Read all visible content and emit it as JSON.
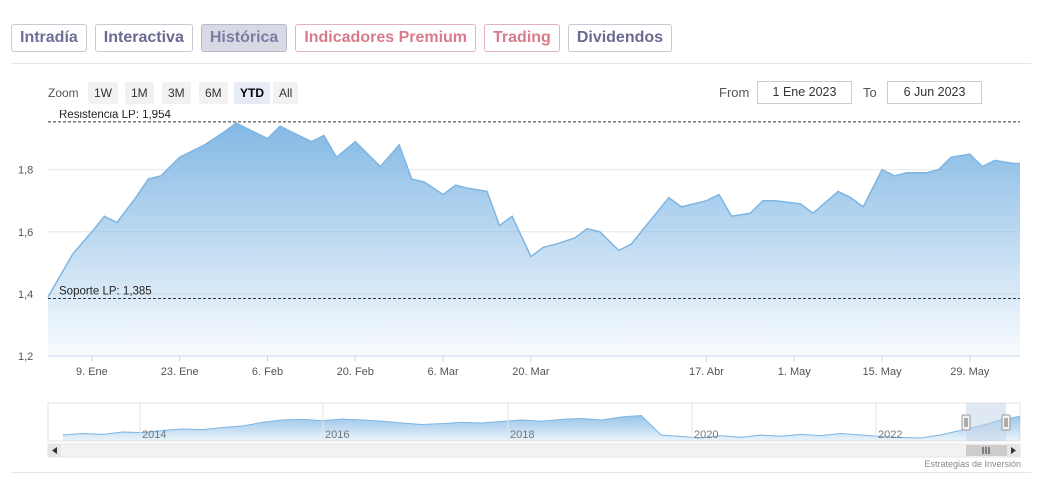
{
  "tabs": [
    {
      "label": "Intradía",
      "style": "normal"
    },
    {
      "label": "Interactiva",
      "style": "dark"
    },
    {
      "label": "Histórica",
      "style": "active"
    },
    {
      "label": "Indicadores Premium",
      "style": "red"
    },
    {
      "label": "Trading",
      "style": "red"
    },
    {
      "label": "Dividendos",
      "style": "dark"
    }
  ],
  "range_selector": {
    "zoom_label": "Zoom",
    "buttons": [
      "1W",
      "1M",
      "3M",
      "6M",
      "YTD",
      "All"
    ],
    "selected": "YTD",
    "from_label": "From",
    "from_value": "1 Ene 2023",
    "to_label": "To",
    "to_value": "6 Jun 2023"
  },
  "credit": "Estrategias de Inversión",
  "colors": {
    "line": "#7db5e3",
    "fill_top": "#7db5e3",
    "fill_bottom": "#ffffff",
    "reference_line": "#333333",
    "navigator_mask": "#c5d6ea"
  },
  "chart_data": {
    "type": "area",
    "x": [
      "2023-01-02",
      "2023-01-04",
      "2023-01-06",
      "2023-01-09",
      "2023-01-11",
      "2023-01-13",
      "2023-01-16",
      "2023-01-18",
      "2023-01-20",
      "2023-01-23",
      "2023-01-25",
      "2023-01-27",
      "2023-01-30",
      "2023-02-01",
      "2023-02-03",
      "2023-02-06",
      "2023-02-08",
      "2023-02-10",
      "2023-02-13",
      "2023-02-15",
      "2023-02-17",
      "2023-02-20",
      "2023-02-22",
      "2023-02-24",
      "2023-02-27",
      "2023-03-01",
      "2023-03-03",
      "2023-03-06",
      "2023-03-08",
      "2023-03-10",
      "2023-03-13",
      "2023-03-15",
      "2023-03-17",
      "2023-03-20",
      "2023-03-22",
      "2023-03-24",
      "2023-03-27",
      "2023-03-29",
      "2023-03-31",
      "2023-04-03",
      "2023-04-05",
      "2023-04-11",
      "2023-04-13",
      "2023-04-17",
      "2023-04-19",
      "2023-04-21",
      "2023-04-24",
      "2023-04-26",
      "2023-04-28",
      "2023-05-02",
      "2023-05-04",
      "2023-05-08",
      "2023-05-10",
      "2023-05-12",
      "2023-05-15",
      "2023-05-17",
      "2023-05-19",
      "2023-05-22",
      "2023-05-24",
      "2023-05-26",
      "2023-05-29",
      "2023-05-31",
      "2023-06-02",
      "2023-06-05",
      "2023-06-06"
    ],
    "series": [
      {
        "values": [
          1.39,
          1.46,
          1.53,
          1.6,
          1.65,
          1.63,
          1.71,
          1.77,
          1.78,
          1.84,
          1.86,
          1.88,
          1.92,
          1.95,
          1.93,
          1.9,
          1.94,
          1.92,
          1.89,
          1.91,
          1.84,
          1.89,
          1.85,
          1.81,
          1.88,
          1.77,
          1.76,
          1.72,
          1.75,
          1.74,
          1.73,
          1.62,
          1.65,
          1.52,
          1.55,
          1.56,
          1.58,
          1.61,
          1.6,
          1.54,
          1.56,
          1.71,
          1.68,
          1.7,
          1.72,
          1.65,
          1.66,
          1.7,
          1.7,
          1.69,
          1.66,
          1.73,
          1.71,
          1.68,
          1.8,
          1.78,
          1.79,
          1.79,
          1.8,
          1.84,
          1.85,
          1.81,
          1.83,
          1.82,
          1.82
        ]
      }
    ],
    "yticks": [
      "1,2",
      "1,4",
      "1,6",
      "1,8"
    ],
    "xticks": [
      {
        "x": "2023-01-09",
        "label": "9. Ene"
      },
      {
        "x": "2023-01-23",
        "label": "23. Ene"
      },
      {
        "x": "2023-02-06",
        "label": "6. Feb"
      },
      {
        "x": "2023-02-20",
        "label": "20. Feb"
      },
      {
        "x": "2023-03-06",
        "label": "6. Mar"
      },
      {
        "x": "2023-03-20",
        "label": "20. Mar"
      },
      {
        "x": "2023-04-17",
        "label": "17. Abr"
      },
      {
        "x": "2023-05-01",
        "label": "1. May"
      },
      {
        "x": "2023-05-15",
        "label": "15. May"
      },
      {
        "x": "2023-05-29",
        "label": "29. May"
      }
    ],
    "xlim": [
      "2023-01-02",
      "2023-06-06"
    ],
    "ylim": [
      1.2,
      1.96
    ],
    "reference_lines": [
      {
        "label": "Resistencia LP: 1,954",
        "value": 1.954
      },
      {
        "label": "Soporte LP: 1,385",
        "value": 1.385
      }
    ],
    "navigator": {
      "years": [
        "2014",
        "2016",
        "2018",
        "2020",
        "2022"
      ],
      "values": [
        1.2,
        1.25,
        1.22,
        1.3,
        1.28,
        1.35,
        1.4,
        1.38,
        1.45,
        1.5,
        1.62,
        1.7,
        1.72,
        1.68,
        1.73,
        1.7,
        1.66,
        1.6,
        1.55,
        1.58,
        1.62,
        1.6,
        1.65,
        1.7,
        1.66,
        1.72,
        1.75,
        1.7,
        1.8,
        1.85,
        1.2,
        1.15,
        1.1,
        1.18,
        1.12,
        1.2,
        1.16,
        1.22,
        1.18,
        1.25,
        1.2,
        1.15,
        1.12,
        1.1,
        1.2,
        1.35,
        1.5,
        1.7,
        1.82
      ]
    }
  }
}
